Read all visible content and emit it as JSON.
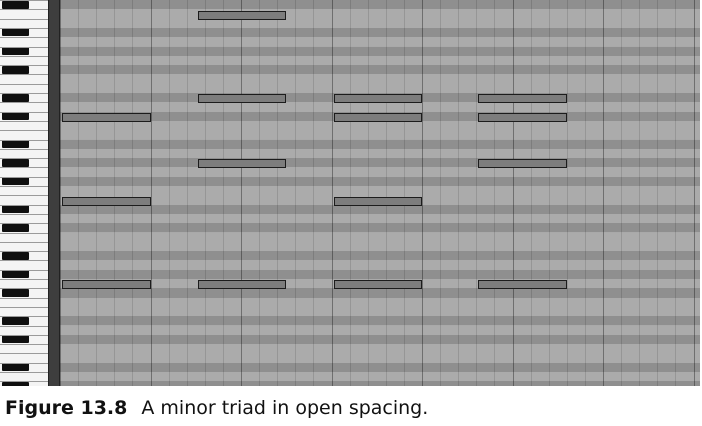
{
  "caption": {
    "figure_label": "Figure 13.8",
    "text": "A minor triad in open spacing."
  },
  "piano_roll": {
    "icon_names": [
      "piano-keyboard-icon"
    ],
    "colors": {
      "note_fill": "#7d7d7d",
      "note_border": "#1c1c1c",
      "lane_light": "#ababab",
      "lane_dark": "#8f8f8f",
      "black_key": "#0f0f0f"
    },
    "chords": [
      {
        "notes": [
          {
            "pitch_row": 12,
            "length_beats": 1
          },
          {
            "pitch_row": 21,
            "length_beats": 1
          },
          {
            "pitch_row": 30,
            "length_beats": 1
          }
        ],
        "start_beat": 0
      },
      {
        "notes": [
          {
            "pitch_row": 1,
            "length_beats": 1
          },
          {
            "pitch_row": 10,
            "length_beats": 1
          },
          {
            "pitch_row": 17,
            "length_beats": 1
          },
          {
            "pitch_row": 30,
            "length_beats": 1
          }
        ],
        "start_beat": 1.5
      },
      {
        "notes": [
          {
            "pitch_row": 10,
            "length_beats": 1
          },
          {
            "pitch_row": 12,
            "length_beats": 1
          },
          {
            "pitch_row": 21,
            "length_beats": 1
          },
          {
            "pitch_row": 30,
            "length_beats": 1
          }
        ],
        "start_beat": 3
      },
      {
        "notes": [
          {
            "pitch_row": 10,
            "length_beats": 1
          },
          {
            "pitch_row": 12,
            "length_beats": 1
          },
          {
            "pitch_row": 17,
            "length_beats": 1
          },
          {
            "pitch_row": 30,
            "length_beats": 1
          }
        ],
        "start_beat": 4.6
      }
    ]
  }
}
